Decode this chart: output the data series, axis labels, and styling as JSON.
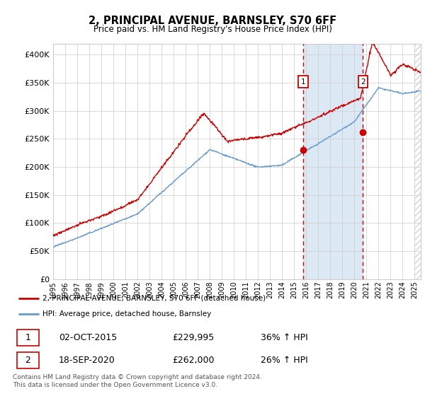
{
  "title": "2, PRINCIPAL AVENUE, BARNSLEY, S70 6FF",
  "subtitle": "Price paid vs. HM Land Registry's House Price Index (HPI)",
  "legend_line1": "2, PRINCIPAL AVENUE, BARNSLEY, S70 6FF (detached house)",
  "legend_line2": "HPI: Average price, detached house, Barnsley",
  "sale1_date": "02-OCT-2015",
  "sale1_price": "£229,995",
  "sale1_hpi": "36% ↑ HPI",
  "sale1_year": 2015.75,
  "sale1_value": 229995,
  "sale2_date": "18-SEP-2020",
  "sale2_price": "£262,000",
  "sale2_hpi": "26% ↑ HPI",
  "sale2_year": 2020.71,
  "sale2_value": 262000,
  "red_color": "#cc0000",
  "blue_color": "#6699cc",
  "shaded_color": "#dce9f5",
  "ylim": [
    0,
    420000
  ],
  "yticks": [
    0,
    50000,
    100000,
    150000,
    200000,
    250000,
    300000,
    350000,
    400000
  ],
  "xlabel_years": [
    "1995",
    "1996",
    "1997",
    "1998",
    "1999",
    "2000",
    "2001",
    "2002",
    "2003",
    "2004",
    "2005",
    "2006",
    "2007",
    "2008",
    "2009",
    "2010",
    "2011",
    "2012",
    "2013",
    "2014",
    "2015",
    "2016",
    "2017",
    "2018",
    "2019",
    "2020",
    "2021",
    "2022",
    "2023",
    "2024",
    "2025"
  ],
  "footer": "Contains HM Land Registry data © Crown copyright and database right 2024.\nThis data is licensed under the Open Government Licence v3.0.",
  "xmin": 1995,
  "xmax": 2025.5
}
